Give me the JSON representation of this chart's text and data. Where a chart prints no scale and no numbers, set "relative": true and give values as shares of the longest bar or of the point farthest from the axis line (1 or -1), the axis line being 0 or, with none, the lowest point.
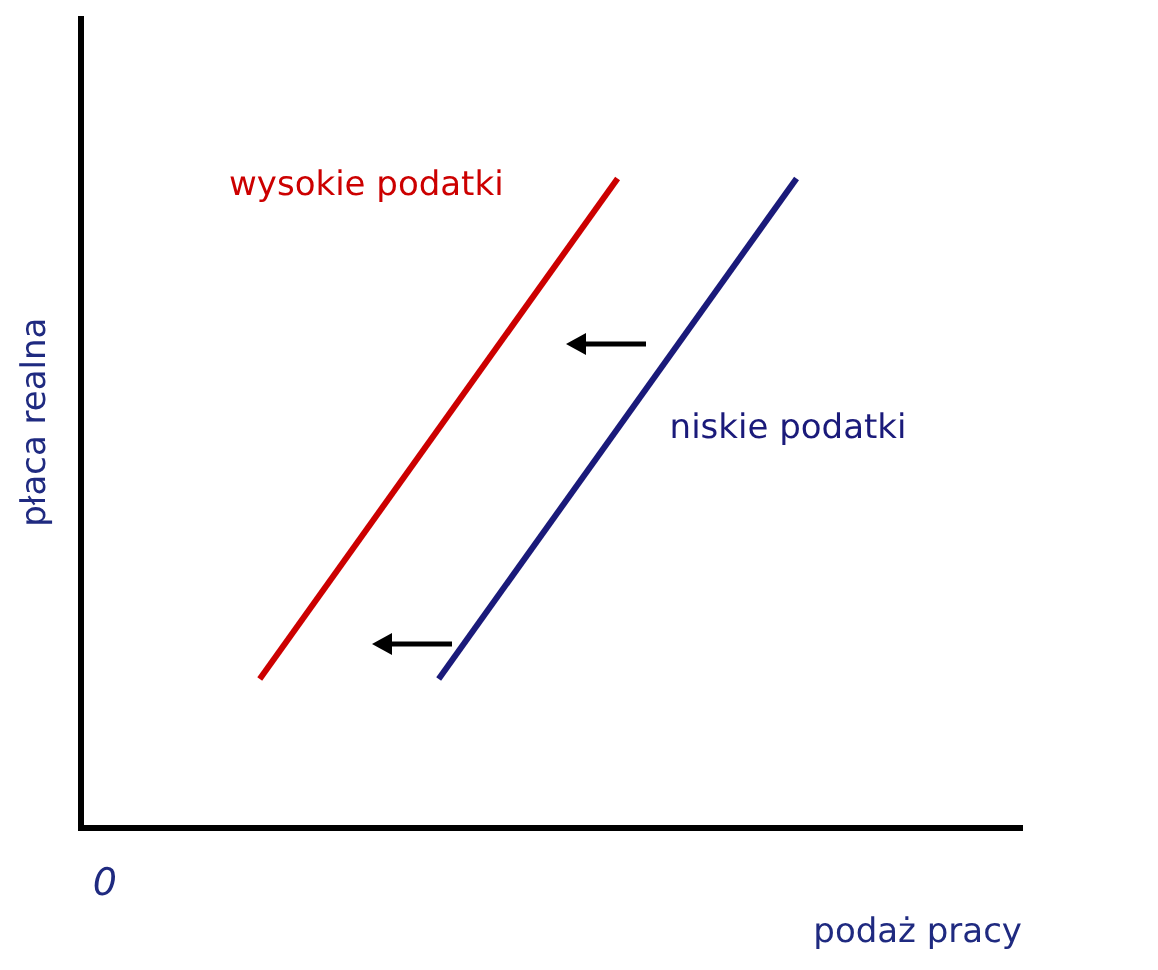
{
  "chart_data": {
    "type": "line",
    "xlabel": "podaż pracy",
    "ylabel": "płaca realna",
    "relative": true,
    "categories": [
      null,
      null,
      null,
      null
    ],
    "grid": false,
    "legend": false,
    "marker": "none",
    "line_style": "solid",
    "annotations": [
      "0"
    ],
    "series": [
      {
        "name": "wysokie podatki",
        "color": "#cc0000",
        "values": [
          0.23,
          null,
          1.0,
          null
        ]
      },
      {
        "name": "niskie podatki",
        "color": "#1a1a7a",
        "values": [
          null,
          0.23,
          null,
          1.0
        ]
      }
    ]
  }
}
